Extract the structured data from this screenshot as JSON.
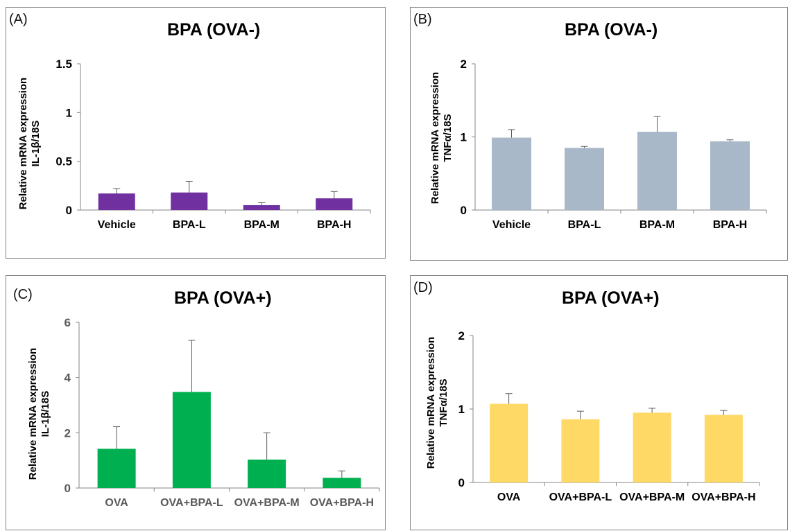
{
  "chart_data": [
    {
      "type": "bar",
      "panel_label": "(A)",
      "title": "BPA (OVA-)",
      "ylabel": [
        "Relative mRNA expression",
        "IL-1β/18S"
      ],
      "categories": [
        "Vehicle",
        "BPA-L",
        "BPA-M",
        "BPA-H"
      ],
      "values": [
        0.17,
        0.18,
        0.05,
        0.12
      ],
      "errors": [
        0.05,
        0.115,
        0.025,
        0.07
      ],
      "ylim": [
        0,
        1.5
      ],
      "yticks": [
        "0",
        "0.5",
        "1",
        "1.5"
      ],
      "tick_values": [
        0,
        0.5,
        1,
        1.5
      ],
      "color": "#7030a0",
      "tick_color": "#000000"
    },
    {
      "type": "bar",
      "panel_label": "(B)",
      "title": "BPA (OVA-)",
      "ylabel": [
        "Relative mRNA expression",
        "TNFα/18S"
      ],
      "categories": [
        "Vehicle",
        "BPA-L",
        "BPA-M",
        "BPA-H"
      ],
      "values": [
        0.99,
        0.85,
        1.07,
        0.94
      ],
      "errors": [
        0.11,
        0.02,
        0.21,
        0.02
      ],
      "ylim": [
        0,
        2
      ],
      "yticks": [
        "0",
        "1",
        "2"
      ],
      "tick_values": [
        0,
        1,
        2
      ],
      "color": "#a8b8c8",
      "tick_color": "#000000"
    },
    {
      "type": "bar",
      "panel_label": "(C)",
      "title": "BPA (OVA+)",
      "ylabel": [
        "Relative mRNA expression",
        "IL-1β/18S"
      ],
      "categories": [
        "OVA",
        "OVA+BPA-L",
        "OVA+BPA-M",
        "OVA+BPA-H"
      ],
      "values": [
        1.42,
        3.48,
        1.03,
        0.37
      ],
      "errors": [
        0.8,
        1.87,
        0.97,
        0.25
      ],
      "ylim": [
        0,
        6
      ],
      "yticks": [
        "0",
        "2",
        "4",
        "6"
      ],
      "tick_values": [
        0,
        2,
        4,
        6
      ],
      "color": "#00b050",
      "tick_color": "#595959"
    },
    {
      "type": "bar",
      "panel_label": "(D)",
      "title": "BPA (OVA+)",
      "ylabel": [
        "Relative mRNA expression",
        "TNFα/18S"
      ],
      "categories": [
        "OVA",
        "OVA+BPA-L",
        "OVA+BPA-M",
        "OVA+BPA-H"
      ],
      "values": [
        1.07,
        0.86,
        0.95,
        0.92
      ],
      "errors": [
        0.14,
        0.11,
        0.06,
        0.06
      ],
      "ylim": [
        0,
        2
      ],
      "yticks": [
        "0",
        "1",
        "2"
      ],
      "tick_values": [
        0,
        1,
        2
      ],
      "color": "#ffd966",
      "tick_color": "#000000"
    }
  ]
}
